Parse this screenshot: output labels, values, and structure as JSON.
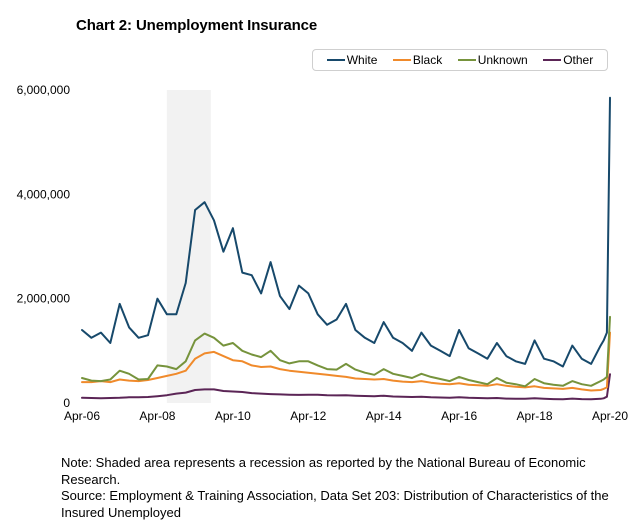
{
  "chart_data": {
    "type": "line",
    "title": "Chart 2: Unemployment Insurance",
    "xlabel": "",
    "ylabel": "",
    "ylim": [
      0,
      6000000
    ],
    "y_ticks": [
      {
        "value": 0,
        "label": "0"
      },
      {
        "value": 2000000,
        "label": "2,000,000"
      },
      {
        "value": 4000000,
        "label": "4,000,000"
      },
      {
        "value": 6000000,
        "label": "6,000,000"
      }
    ],
    "x_ticks": [
      "Apr-06",
      "Apr-08",
      "Apr-10",
      "Apr-12",
      "Apr-14",
      "Apr-16",
      "Apr-18",
      "Apr-20"
    ],
    "x_range": [
      "Apr-06",
      "Apr-20"
    ],
    "x_unit": "months since Apr-06",
    "grid": false,
    "legend_position": "top-right",
    "recession": {
      "start_month": 27,
      "end_month": 41,
      "label": "recession"
    },
    "x": [
      0,
      3,
      6,
      9,
      12,
      15,
      18,
      21,
      24,
      27,
      30,
      33,
      36,
      39,
      42,
      45,
      48,
      51,
      54,
      57,
      60,
      63,
      66,
      69,
      72,
      75,
      78,
      81,
      84,
      87,
      90,
      93,
      96,
      99,
      102,
      105,
      108,
      111,
      114,
      117,
      120,
      123,
      126,
      129,
      132,
      135,
      138,
      141,
      144,
      147,
      150,
      153,
      156,
      159,
      162,
      165,
      166,
      167,
      168
    ],
    "series": [
      {
        "name": "White",
        "color": "#17496b",
        "values": [
          1400000,
          1250000,
          1350000,
          1150000,
          1900000,
          1450000,
          1250000,
          1300000,
          2000000,
          1700000,
          1700000,
          2300000,
          3700000,
          3850000,
          3500000,
          2900000,
          3350000,
          2500000,
          2450000,
          2100000,
          2700000,
          2050000,
          1800000,
          2250000,
          2100000,
          1700000,
          1500000,
          1600000,
          1900000,
          1400000,
          1250000,
          1150000,
          1550000,
          1250000,
          1150000,
          1000000,
          1350000,
          1100000,
          1000000,
          900000,
          1400000,
          1050000,
          950000,
          850000,
          1150000,
          900000,
          800000,
          750000,
          1200000,
          850000,
          800000,
          700000,
          1100000,
          850000,
          750000,
          1100000,
          1200000,
          1350000,
          5850000
        ]
      },
      {
        "name": "Black",
        "color": "#f08a2b",
        "values": [
          400000,
          400000,
          420000,
          400000,
          450000,
          430000,
          420000,
          440000,
          480000,
          520000,
          560000,
          620000,
          850000,
          950000,
          980000,
          900000,
          820000,
          800000,
          720000,
          690000,
          700000,
          650000,
          620000,
          600000,
          580000,
          560000,
          540000,
          520000,
          500000,
          470000,
          460000,
          450000,
          460000,
          430000,
          410000,
          400000,
          420000,
          390000,
          370000,
          360000,
          380000,
          350000,
          340000,
          330000,
          360000,
          330000,
          310000,
          300000,
          320000,
          290000,
          280000,
          270000,
          290000,
          260000,
          240000,
          250000,
          270000,
          300000,
          1350000
        ]
      },
      {
        "name": "Unknown",
        "color": "#76933c",
        "values": [
          480000,
          430000,
          420000,
          450000,
          620000,
          560000,
          450000,
          460000,
          720000,
          700000,
          650000,
          800000,
          1200000,
          1330000,
          1250000,
          1100000,
          1150000,
          1000000,
          930000,
          880000,
          1000000,
          820000,
          760000,
          800000,
          800000,
          720000,
          650000,
          640000,
          750000,
          640000,
          580000,
          540000,
          650000,
          560000,
          520000,
          480000,
          560000,
          500000,
          460000,
          420000,
          500000,
          440000,
          400000,
          360000,
          480000,
          390000,
          360000,
          320000,
          460000,
          380000,
          350000,
          330000,
          420000,
          360000,
          330000,
          420000,
          450000,
          500000,
          1650000
        ]
      },
      {
        "name": "Other",
        "color": "#5b2556",
        "values": [
          100000,
          95000,
          90000,
          95000,
          100000,
          110000,
          110000,
          115000,
          130000,
          150000,
          180000,
          200000,
          250000,
          260000,
          260000,
          230000,
          220000,
          210000,
          190000,
          180000,
          170000,
          165000,
          160000,
          155000,
          160000,
          160000,
          150000,
          145000,
          150000,
          140000,
          135000,
          130000,
          140000,
          125000,
          120000,
          115000,
          120000,
          110000,
          105000,
          100000,
          110000,
          100000,
          95000,
          90000,
          95000,
          85000,
          80000,
          80000,
          90000,
          80000,
          75000,
          70000,
          85000,
          75000,
          70000,
          80000,
          90000,
          120000,
          550000
        ]
      }
    ]
  },
  "legend": {
    "items": [
      {
        "label": "White",
        "color": "#17496b"
      },
      {
        "label": "Black",
        "color": "#f08a2b"
      },
      {
        "label": "Unknown",
        "color": "#76933c"
      },
      {
        "label": "Other",
        "color": "#5b2556"
      }
    ]
  },
  "notes": {
    "note": "Note: Shaded area represents a recession as reported by the National Bureau of Economic Research.",
    "source": "Source: Employment & Training Association, Data Set 203: Distribution of Characteristics of the Insured Unemployed"
  }
}
